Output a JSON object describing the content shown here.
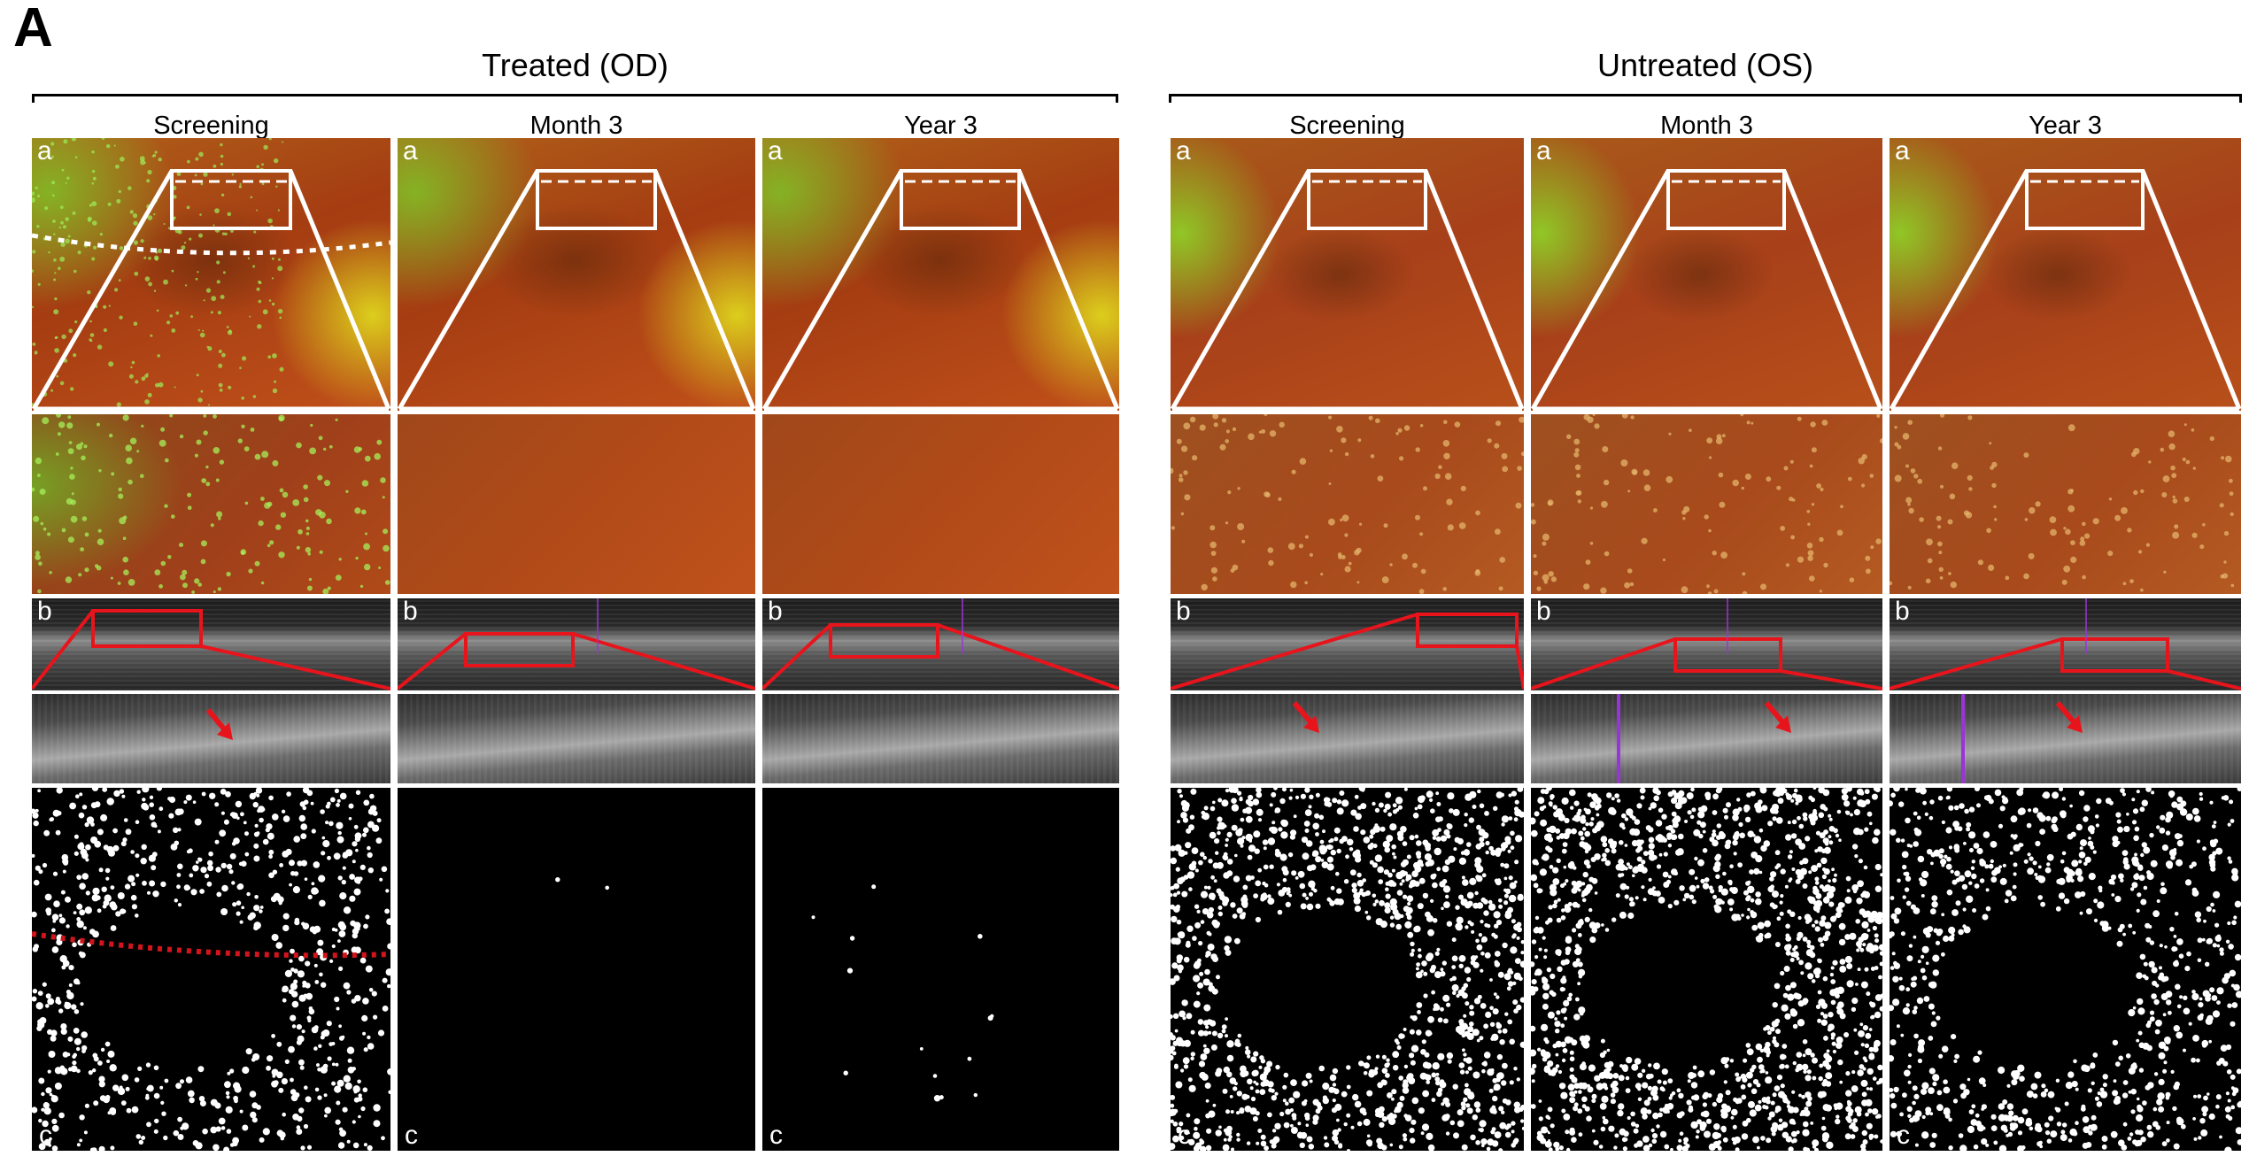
{
  "figure": {
    "panel_label": "A",
    "groups": [
      {
        "title": "Treated (OD)",
        "columns": [
          "Screening",
          "Month 3",
          "Year 3"
        ]
      },
      {
        "title": "Untreated (OS)",
        "columns": [
          "Screening",
          "Month 3",
          "Year 3"
        ]
      }
    ],
    "row_labels": {
      "a": "a",
      "b": "b",
      "c": "c"
    },
    "colors": {
      "overlay_white": "#ffffff",
      "oct_box": "#e8141c",
      "arrow": "#e8141c",
      "dotted_red": "#d4141c",
      "purple_line": "#9b34d8",
      "mask_bg": "#000000"
    },
    "images": [
      "color fundus photograph with zoom trapezoid",
      "magnified fundus region",
      "OCT B-scan with red region box",
      "magnified OCT region",
      "binary drusen map (white deposits on black)"
    ]
  }
}
